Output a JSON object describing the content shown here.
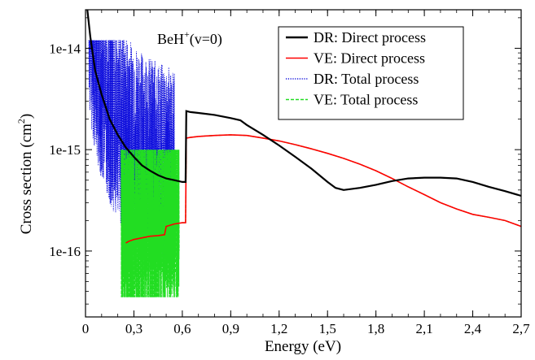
{
  "chart_data": {
    "type": "line",
    "title": "",
    "annotation": {
      "main": "BeH",
      "sup": "+",
      "rest": "(v=0)"
    },
    "xlabel": "Energy (eV)",
    "ylabel": {
      "main": "Cross section (cm",
      "sup": "2",
      "rest": ")"
    },
    "xlim": [
      0,
      2.7
    ],
    "ylim_log10": [
      -16.65,
      -13.62
    ],
    "y_scale": "log",
    "grid": false,
    "legend_position": "top-right",
    "x_ticks": [
      {
        "value": 0,
        "label": "0"
      },
      {
        "value": 0.3,
        "label": "0,3"
      },
      {
        "value": 0.6,
        "label": "0,6"
      },
      {
        "value": 0.9,
        "label": "0,9"
      },
      {
        "value": 1.2,
        "label": "1,2"
      },
      {
        "value": 1.5,
        "label": "1,5"
      },
      {
        "value": 1.8,
        "label": "1,8"
      },
      {
        "value": 2.1,
        "label": "2,1"
      },
      {
        "value": 2.4,
        "label": "2,4"
      },
      {
        "value": 2.7,
        "label": "2,7"
      }
    ],
    "y_ticks": [
      {
        "value": 1e-14,
        "label": "1e-14"
      },
      {
        "value": 1e-15,
        "label": "1e-15"
      },
      {
        "value": 1e-16,
        "label": "1e-16"
      }
    ],
    "series": [
      {
        "name": "DR: Direct process",
        "color": "#000000",
        "style": "solid",
        "x": [
          0.001,
          0.01,
          0.03,
          0.06,
          0.1,
          0.15,
          0.2,
          0.25,
          0.3,
          0.35,
          0.4,
          0.45,
          0.5,
          0.55,
          0.6,
          0.62,
          0.625,
          0.65,
          0.7,
          0.8,
          0.9,
          0.96,
          1.0,
          1.1,
          1.2,
          1.3,
          1.4,
          1.5,
          1.55,
          1.6,
          1.7,
          1.8,
          1.9,
          2.0,
          2.1,
          2.2,
          2.3,
          2.4,
          2.5,
          2.6,
          2.7
        ],
        "y": [
          4e-14,
          2.5e-14,
          1.3e-14,
          6e-15,
          3.5e-15,
          2e-15,
          1.4e-15,
          1.05e-15,
          8.5e-16,
          7e-16,
          6.2e-16,
          5.6e-16,
          5.2e-16,
          5e-16,
          4.8e-16,
          4.8e-16,
          2.4e-15,
          2.35e-15,
          2.3e-15,
          2.2e-15,
          2.05e-15,
          1.95e-15,
          1.75e-15,
          1.4e-15,
          1.1e-15,
          8.5e-16,
          6.5e-16,
          4.8e-16,
          4.2e-16,
          4e-16,
          4.2e-16,
          4.5e-16,
          4.9e-16,
          5.2e-16,
          5.3e-16,
          5.3e-16,
          5.2e-16,
          4.8e-16,
          4.3e-16,
          3.9e-16,
          3.5e-16
        ]
      },
      {
        "name": "VE: Direct process",
        "color": "#ff0000",
        "style": "solid",
        "x": [
          0.25,
          0.27,
          0.3,
          0.35,
          0.4,
          0.45,
          0.49,
          0.5,
          0.55,
          0.6,
          0.62,
          0.625,
          0.65,
          0.7,
          0.8,
          0.9,
          1.0,
          1.1,
          1.2,
          1.3,
          1.4,
          1.5,
          1.6,
          1.7,
          1.8,
          1.9,
          2.0,
          2.1,
          2.2,
          2.3,
          2.4,
          2.5,
          2.6,
          2.7
        ],
        "y": [
          1.2e-16,
          1.25e-16,
          1.3e-16,
          1.35e-16,
          1.4e-16,
          1.42e-16,
          1.45e-16,
          1.75e-16,
          1.85e-16,
          1.9e-16,
          1.9e-16,
          1.3e-15,
          1.32e-15,
          1.35e-15,
          1.38e-15,
          1.4e-15,
          1.38e-15,
          1.3e-15,
          1.22e-15,
          1.12e-15,
          1.02e-15,
          9.2e-16,
          8.2e-16,
          7.2e-16,
          6.2e-16,
          5.2e-16,
          4.3e-16,
          3.6e-16,
          3e-16,
          2.6e-16,
          2.3e-16,
          2.15e-16,
          2e-16,
          1.75e-16
        ]
      },
      {
        "name": "DR: Total process",
        "color": "#1010dd",
        "style": "dotted",
        "x": [
          0.001,
          0.01,
          0.03,
          0.06,
          0.1,
          0.15,
          0.2,
          0.25,
          0.3,
          0.35,
          0.4,
          0.45,
          0.5,
          0.55,
          0.6,
          0.62,
          0.625,
          0.65,
          0.7,
          0.8,
          0.9,
          0.96,
          1.0,
          1.1,
          1.2,
          1.3,
          1.4,
          1.5,
          1.55,
          1.6,
          1.7,
          1.8,
          1.9,
          2.0,
          2.1,
          2.2,
          2.3,
          2.4,
          2.5,
          2.6,
          2.7
        ],
        "y": [
          4e-14,
          2.5e-14,
          1.3e-14,
          6e-15,
          3.5e-15,
          2e-15,
          1.4e-15,
          1.05e-15,
          8.5e-16,
          7e-16,
          6.2e-16,
          5.6e-16,
          5.2e-16,
          5e-16,
          4.8e-16,
          4.8e-16,
          2.4e-15,
          2.35e-15,
          2.3e-15,
          2.2e-15,
          2.05e-15,
          1.95e-15,
          1.75e-15,
          1.4e-15,
          1.1e-15,
          8.5e-16,
          6.5e-16,
          4.8e-16,
          4.2e-16,
          4e-16,
          4.2e-16,
          4.5e-16,
          4.9e-16,
          5.2e-16,
          5.3e-16,
          5.3e-16,
          5.2e-16,
          4.8e-16,
          4.3e-16,
          3.9e-16,
          3.5e-16
        ],
        "resonance_range": [
          0.02,
          0.55
        ],
        "resonance_band": [
          2e-17,
          1.2e-14
        ]
      },
      {
        "name": "VE: Total process",
        "color": "#22dd22",
        "style": "dashed",
        "x": [
          0.25,
          0.27,
          0.3,
          0.35,
          0.4,
          0.45,
          0.49,
          0.5,
          0.55,
          0.6,
          0.62,
          0.625,
          0.65,
          0.7,
          0.8,
          0.9,
          1.0,
          1.1,
          1.2,
          1.3,
          1.4,
          1.5,
          1.6,
          1.7,
          1.8,
          1.9,
          2.0,
          2.1,
          2.2,
          2.3,
          2.4,
          2.5,
          2.6,
          2.7
        ],
        "y": [
          1.2e-16,
          1.25e-16,
          1.3e-16,
          1.35e-16,
          1.4e-16,
          1.42e-16,
          1.45e-16,
          1.75e-16,
          1.85e-16,
          1.9e-16,
          1.9e-16,
          1.3e-15,
          1.32e-15,
          1.35e-15,
          1.38e-15,
          1.4e-15,
          1.38e-15,
          1.3e-15,
          1.22e-15,
          1.12e-15,
          1.02e-15,
          9.2e-16,
          8.2e-16,
          7.2e-16,
          6.2e-16,
          5.2e-16,
          4.3e-16,
          3.6e-16,
          3e-16,
          2.6e-16,
          2.3e-16,
          2.15e-16,
          2e-16,
          1.75e-16
        ],
        "resonance_range": [
          0.22,
          0.58
        ],
        "resonance_band": [
          3.5e-17,
          1e-15
        ]
      }
    ]
  }
}
